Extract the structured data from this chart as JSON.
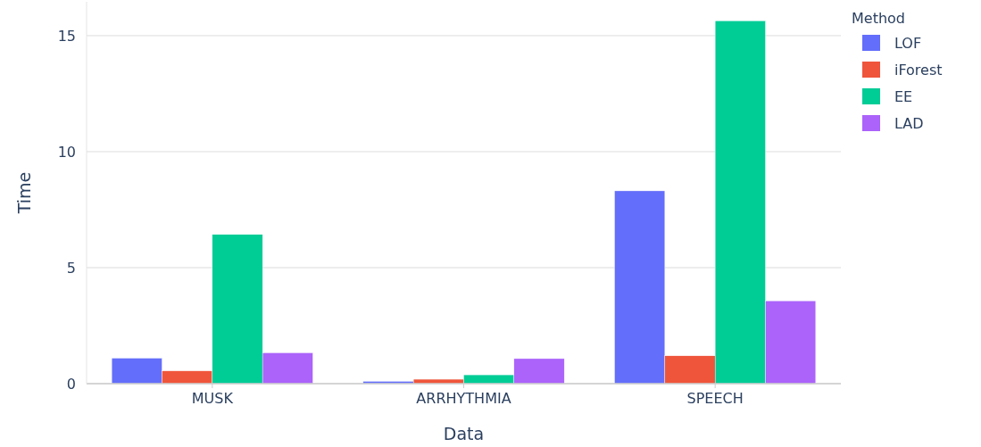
{
  "chart_data": {
    "type": "bar",
    "xlabel": "Data",
    "ylabel": "Time",
    "legend_title": "Method",
    "categories": [
      "MUSK",
      "ARRHYTHMIA",
      "SPEECH"
    ],
    "series": [
      {
        "name": "LOF",
        "color": "#636efa",
        "values": [
          1.1,
          0.1,
          8.31
        ]
      },
      {
        "name": "iForest",
        "color": "#ef553b",
        "values": [
          0.55,
          0.19,
          1.2
        ]
      },
      {
        "name": "EE",
        "color": "#00cc96",
        "values": [
          6.43,
          0.38,
          15.64
        ]
      },
      {
        "name": "LAD",
        "color": "#ab63fa",
        "values": [
          1.33,
          1.08,
          3.57
        ]
      }
    ],
    "ylim": [
      0,
      16.46
    ],
    "yticks": [
      0,
      5,
      10,
      15
    ],
    "grid": "y",
    "legend": "top right"
  }
}
